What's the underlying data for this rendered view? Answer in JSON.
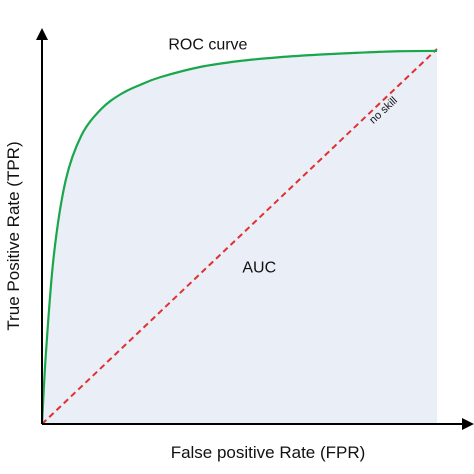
{
  "chart_data": {
    "type": "area",
    "title": "",
    "xlabel": "False positive Rate (FPR)",
    "ylabel": "True Positive Rate (TPR)",
    "xlim": [
      0,
      1
    ],
    "ylim": [
      0,
      1
    ],
    "grid": false,
    "ticks_shown": false,
    "legend": "none",
    "series": [
      {
        "name": "ROC curve",
        "kind": "curve",
        "color": "#1aa64b",
        "x": [
          0,
          0.01,
          0.03,
          0.06,
          0.1,
          0.15,
          0.2,
          0.25,
          0.3,
          0.4,
          0.5,
          0.6,
          0.7,
          0.8,
          0.9,
          1.0
        ],
        "y": [
          0,
          0.19,
          0.45,
          0.65,
          0.77,
          0.84,
          0.88,
          0.905,
          0.925,
          0.952,
          0.968,
          0.978,
          0.985,
          0.99,
          0.994,
          0.995
        ]
      },
      {
        "name": "no skill",
        "kind": "diagonal",
        "color": "#e03030",
        "dash": true,
        "x": [
          0,
          1
        ],
        "y": [
          0,
          1
        ]
      }
    ],
    "fill": {
      "label": "AUC",
      "color": "#e9eef7"
    },
    "annotations": [
      {
        "text": "ROC curve",
        "target": "curve",
        "x": 0.42,
        "y": 1.02
      },
      {
        "text": "AUC",
        "target": "area",
        "x": 0.55,
        "y": 0.42
      },
      {
        "text": "no skill",
        "target": "diagonal",
        "x": 0.87,
        "y": 0.83
      }
    ],
    "axis_color": "#000000"
  }
}
